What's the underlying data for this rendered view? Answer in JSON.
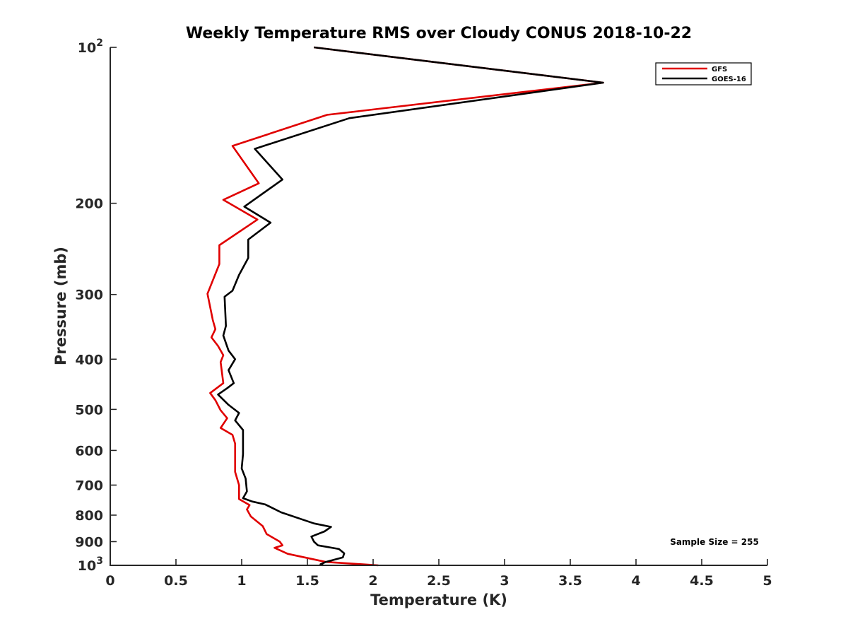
{
  "chart_data": {
    "type": "line",
    "title": "Weekly Temperature RMS over Cloudy CONUS 2018-10-22",
    "xlabel": "Temperature (K)",
    "ylabel": "Pressure (mb)",
    "xlim": [
      0,
      5
    ],
    "ylim": [
      100,
      1000
    ],
    "y_scale": "log",
    "y_reversed": true,
    "grid": false,
    "legend_position": "top-right",
    "colors": {
      "GFS": "#e00000",
      "GOES-16": "#000000"
    },
    "x_ticks": [
      {
        "value": 0,
        "label": "0"
      },
      {
        "value": 0.5,
        "label": "0.5"
      },
      {
        "value": 1,
        "label": "1"
      },
      {
        "value": 1.5,
        "label": "1.5"
      },
      {
        "value": 2,
        "label": "2"
      },
      {
        "value": 2.5,
        "label": "2.5"
      },
      {
        "value": 3,
        "label": "3"
      },
      {
        "value": 3.5,
        "label": "3.5"
      },
      {
        "value": 4,
        "label": "4"
      },
      {
        "value": 4.5,
        "label": "4.5"
      },
      {
        "value": 5,
        "label": "5"
      }
    ],
    "y_ticks": [
      {
        "value": 100,
        "base": "10",
        "exp": "2"
      },
      {
        "value": 200,
        "label": "200"
      },
      {
        "value": 300,
        "label": "300"
      },
      {
        "value": 400,
        "label": "400"
      },
      {
        "value": 500,
        "label": "500"
      },
      {
        "value": 600,
        "label": "600"
      },
      {
        "value": 700,
        "label": "700"
      },
      {
        "value": 800,
        "label": "800"
      },
      {
        "value": 900,
        "label": "900"
      },
      {
        "value": 1000,
        "base": "10",
        "exp": "3"
      }
    ],
    "annotation": "Sample Size = 255",
    "series": [
      {
        "name": "GFS",
        "points": [
          [
            1.55,
            100
          ],
          [
            3.75,
            117
          ],
          [
            1.65,
            135
          ],
          [
            0.93,
            155
          ],
          [
            1.13,
            183
          ],
          [
            0.86,
            197
          ],
          [
            1.12,
            215
          ],
          [
            0.83,
            241
          ],
          [
            0.83,
            262
          ],
          [
            0.74,
            299
          ],
          [
            0.78,
            336
          ],
          [
            0.8,
            350
          ],
          [
            0.77,
            363
          ],
          [
            0.82,
            377
          ],
          [
            0.86,
            393
          ],
          [
            0.84,
            405
          ],
          [
            0.86,
            445
          ],
          [
            0.76,
            465
          ],
          [
            0.8,
            480
          ],
          [
            0.84,
            502
          ],
          [
            0.89,
            520
          ],
          [
            0.84,
            543
          ],
          [
            0.93,
            560
          ],
          [
            0.95,
            582
          ],
          [
            0.95,
            620
          ],
          [
            0.95,
            660
          ],
          [
            0.98,
            700
          ],
          [
            0.98,
            745
          ],
          [
            1.06,
            765
          ],
          [
            1.04,
            780
          ],
          [
            1.07,
            805
          ],
          [
            1.16,
            840
          ],
          [
            1.19,
            870
          ],
          [
            1.29,
            900
          ],
          [
            1.31,
            915
          ],
          [
            1.25,
            925
          ],
          [
            1.35,
            950
          ],
          [
            1.64,
            985
          ],
          [
            2.04,
            1000
          ]
        ]
      },
      {
        "name": "GOES-16",
        "points": [
          [
            1.55,
            100
          ],
          [
            3.75,
            117
          ],
          [
            1.82,
            137
          ],
          [
            1.1,
            157
          ],
          [
            1.31,
            180
          ],
          [
            1.02,
            203
          ],
          [
            1.22,
            218
          ],
          [
            1.05,
            235
          ],
          [
            1.05,
            255
          ],
          [
            0.98,
            275
          ],
          [
            0.93,
            295
          ],
          [
            0.87,
            303
          ],
          [
            0.88,
            345
          ],
          [
            0.86,
            360
          ],
          [
            0.9,
            385
          ],
          [
            0.95,
            400
          ],
          [
            0.9,
            420
          ],
          [
            0.94,
            445
          ],
          [
            0.89,
            455
          ],
          [
            0.82,
            468
          ],
          [
            0.9,
            490
          ],
          [
            0.98,
            508
          ],
          [
            0.95,
            525
          ],
          [
            1.01,
            548
          ],
          [
            1.01,
            580
          ],
          [
            1.01,
            610
          ],
          [
            1.0,
            650
          ],
          [
            1.03,
            680
          ],
          [
            1.04,
            720
          ],
          [
            1.01,
            742
          ],
          [
            1.08,
            753
          ],
          [
            1.18,
            763
          ],
          [
            1.3,
            790
          ],
          [
            1.55,
            830
          ],
          [
            1.68,
            843
          ],
          [
            1.63,
            860
          ],
          [
            1.53,
            880
          ],
          [
            1.55,
            900
          ],
          [
            1.58,
            915
          ],
          [
            1.74,
            930
          ],
          [
            1.78,
            948
          ],
          [
            1.77,
            965
          ],
          [
            1.64,
            985
          ],
          [
            1.6,
            995
          ],
          [
            1.62,
            1000
          ]
        ]
      }
    ]
  }
}
